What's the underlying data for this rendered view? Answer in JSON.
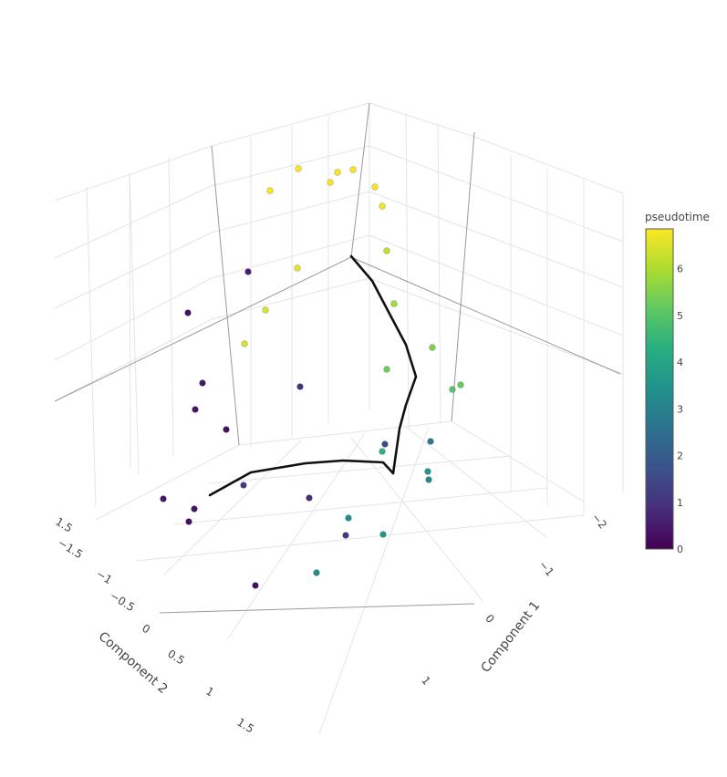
{
  "chart_data": {
    "type": "scatter3d",
    "colorbar": {
      "title": "pseudotime",
      "range": [
        0,
        6.85
      ],
      "tick_values": [
        0,
        1,
        2,
        3,
        4,
        5,
        6
      ],
      "tick_labels": [
        "0",
        "1",
        "2",
        "3",
        "4",
        "5",
        "6"
      ],
      "colorscale": "viridis"
    },
    "axes": {
      "x": {
        "title": "Component 1",
        "ticks": [
          "0",
          "1",
          "2"
        ],
        "tick_labels": [
          "0",
          "−1",
          "−2"
        ]
      },
      "y": {
        "title": "Component 2",
        "ticks": [
          "-1.5",
          "-1",
          "-0.5",
          "0",
          "0.5",
          "1",
          "1.5"
        ],
        "tick_labels": [
          "−1.5",
          "−1",
          "−0.5",
          "0",
          "0.5",
          "1",
          "1.5"
        ]
      },
      "z": {
        "title": "",
        "tick_labels": [
          "1.5"
        ]
      }
    },
    "points": [
      {
        "pseudotime": 6.8
      },
      {
        "pseudotime": 6.8
      },
      {
        "pseudotime": 6.8
      },
      {
        "pseudotime": 6.8
      },
      {
        "pseudotime": 6.8
      },
      {
        "pseudotime": 6.75
      },
      {
        "pseudotime": 6.7
      },
      {
        "pseudotime": 6.6
      },
      {
        "pseudotime": 6.5
      },
      {
        "pseudotime": 6.45
      },
      {
        "pseudotime": 6.2
      },
      {
        "pseudotime": 5.9
      },
      {
        "pseudotime": 5.5
      },
      {
        "pseudotime": 5.3
      },
      {
        "pseudotime": 5.2
      },
      {
        "pseudotime": 5.0
      },
      {
        "pseudotime": 0.6
      },
      {
        "pseudotime": 0.3
      },
      {
        "pseudotime": 0.5
      },
      {
        "pseudotime": 0.4
      },
      {
        "pseudotime": 0.3
      },
      {
        "pseudotime": 1.0
      },
      {
        "pseudotime": 0.4
      },
      {
        "pseudotime": 0.4
      },
      {
        "pseudotime": 0.3
      },
      {
        "pseudotime": 1.2
      },
      {
        "pseudotime": 0.9
      },
      {
        "pseudotime": 1.1
      },
      {
        "pseudotime": 0.3
      },
      {
        "pseudotime": 1.5
      },
      {
        "pseudotime": 4.4
      },
      {
        "pseudotime": 2.7
      },
      {
        "pseudotime": 3.6
      },
      {
        "pseudotime": 3.2
      },
      {
        "pseudotime": 3.4
      },
      {
        "pseudotime": 3.6
      },
      {
        "pseudotime": 3.3
      }
    ]
  }
}
